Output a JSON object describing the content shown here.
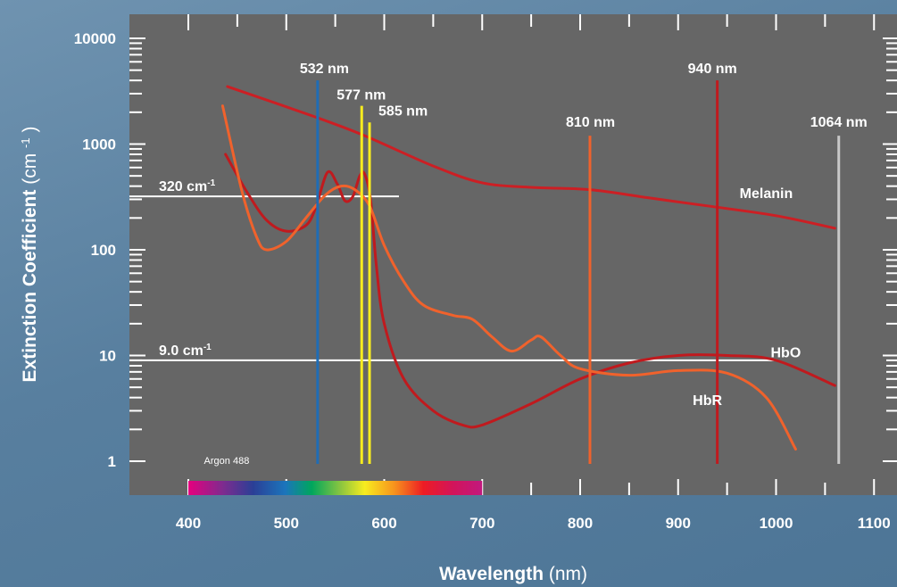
{
  "chart_data": {
    "type": "line",
    "xlabel": {
      "bold": "Wavelength",
      "unit": "(nm)"
    },
    "ylabel": {
      "bold": "Extinction Coefficient",
      "unit": "(cm",
      "sup": "-1",
      "close": ")"
    },
    "yscale": "log",
    "xlim": [
      345,
      1130
    ],
    "ylim": [
      0.75,
      14000
    ],
    "x_ticks": [
      "400",
      "500",
      "600",
      "700",
      "800",
      "900",
      "1000",
      "1100"
    ],
    "y_ticks": [
      "1",
      "10",
      "100",
      "1000",
      "10000"
    ],
    "series": [
      {
        "name": "Melanin",
        "color": "#cc1f24",
        "x": [
          440,
          530,
          580,
          650,
          700,
          750,
          810,
          870,
          930,
          1000,
          1060
        ],
        "y": [
          3500,
          1800,
          1200,
          620,
          430,
          390,
          370,
          310,
          260,
          210,
          160
        ]
      },
      {
        "name": "HbO",
        "color": "#c01a1e",
        "x": [
          438,
          460,
          480,
          500,
          520,
          530,
          542,
          552,
          560,
          568,
          575,
          580,
          586,
          592,
          600,
          620,
          650,
          680,
          700,
          750,
          800,
          850,
          900,
          950,
          1000,
          1060
        ],
        "y": [
          800,
          350,
          190,
          150,
          170,
          250,
          540,
          420,
          290,
          320,
          500,
          520,
          300,
          70,
          20,
          6,
          3,
          2.2,
          2.2,
          3.5,
          6,
          8.5,
          10,
          10,
          9,
          5.2
        ]
      },
      {
        "name": "HbR",
        "color": "#f0622c",
        "x": [
          435,
          455,
          470,
          480,
          500,
          520,
          540,
          556,
          570,
          585,
          600,
          620,
          640,
          670,
          690,
          710,
          730,
          750,
          760,
          780,
          800,
          850,
          900,
          950,
          990,
          1020
        ],
        "y": [
          2300,
          350,
          130,
          100,
          120,
          200,
          330,
          400,
          370,
          260,
          110,
          50,
          30,
          24,
          22,
          15,
          11,
          14,
          15,
          10,
          7.5,
          6.5,
          7.2,
          6.8,
          4,
          1.3
        ]
      }
    ],
    "vertical_lines": [
      {
        "label": "532 nm",
        "x": 532,
        "y_top": 4000,
        "color": "#1f6db5"
      },
      {
        "label": "577 nm",
        "x": 577,
        "y_top": 2300,
        "color": "#f7ec1f"
      },
      {
        "label": "585 nm",
        "x": 585,
        "y_top": 1600,
        "color": "#f7ec1f"
      },
      {
        "label": "810 nm",
        "x": 810,
        "y_top": 1200,
        "color": "#f0622c"
      },
      {
        "label": "940 nm",
        "x": 940,
        "y_top": 4000,
        "color": "#c01a1e"
      },
      {
        "label": "1064 nm",
        "x": 1064,
        "y_top": 1200,
        "color": "#c8c8c8"
      }
    ],
    "horizontal_lines": [
      {
        "label": "320 cm",
        "sup": "-1",
        "y": 320,
        "x_end": 615
      },
      {
        "label": "9.0 cm",
        "sup": "-1",
        "y": 9.0,
        "x_end": 1000
      }
    ],
    "annotations": [
      {
        "text": "Melanin",
        "x": 1020,
        "y": 310
      },
      {
        "text": "HbO",
        "x": 1040,
        "y": 9.6
      },
      {
        "text": "HbR",
        "x": 960,
        "y": 3.4
      }
    ],
    "spectrum_label": "Argon 488",
    "spectrum_range": [
      400,
      700
    ]
  }
}
